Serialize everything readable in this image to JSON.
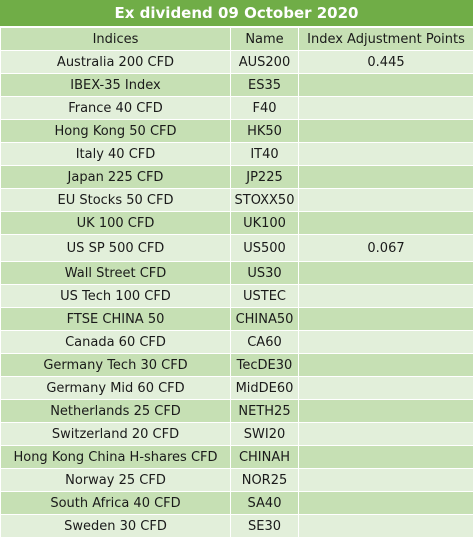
{
  "title": "Ex dividend 09 October 2020",
  "columns": [
    "Indices",
    "Name",
    "Index Adjustment Points"
  ],
  "rows": [
    {
      "index": "Australia 200 CFD",
      "name": "AUS200",
      "points": "0.445"
    },
    {
      "index": "IBEX-35 Index",
      "name": "ES35",
      "points": ""
    },
    {
      "index": "France 40 CFD",
      "name": "F40",
      "points": ""
    },
    {
      "index": "Hong Kong 50 CFD",
      "name": "HK50",
      "points": ""
    },
    {
      "index": "Italy 40 CFD",
      "name": "IT40",
      "points": ""
    },
    {
      "index": "Japan 225 CFD",
      "name": "JP225",
      "points": ""
    },
    {
      "index": "EU Stocks 50 CFD",
      "name": "STOXX50",
      "points": ""
    },
    {
      "index": "UK 100 CFD",
      "name": "UK100",
      "points": ""
    },
    {
      "index": "US SP 500 CFD",
      "name": "US500",
      "points": "0.067"
    },
    {
      "index": "Wall Street CFD",
      "name": "US30",
      "points": ""
    },
    {
      "index": "US Tech 100 CFD",
      "name": "USTEC",
      "points": ""
    },
    {
      "index": "FTSE CHINA 50",
      "name": "CHINA50",
      "points": ""
    },
    {
      "index": "Canada 60 CFD",
      "name": "CA60",
      "points": ""
    },
    {
      "index": "Germany Tech 30 CFD",
      "name": "TecDE30",
      "points": ""
    },
    {
      "index": "Germany Mid 60 CFD",
      "name": "MidDE60",
      "points": ""
    },
    {
      "index": "Netherlands 25 CFD",
      "name": "NETH25",
      "points": ""
    },
    {
      "index": "Switzerland 20 CFD",
      "name": "SWI20",
      "points": ""
    },
    {
      "index": "Hong Kong China H-shares CFD",
      "name": "CHINAH",
      "points": ""
    },
    {
      "index": "Norway 25 CFD",
      "name": "NOR25",
      "points": ""
    },
    {
      "index": "South Africa 40 CFD",
      "name": "SA40",
      "points": ""
    },
    {
      "index": "Sweden 30 CFD",
      "name": "SE30",
      "points": ""
    }
  ],
  "colors": {
    "title_bg": "#70ad47",
    "header_bg": "#c6e0b4",
    "row_light": "#e2efda",
    "row_dark": "#c6e0b4"
  }
}
